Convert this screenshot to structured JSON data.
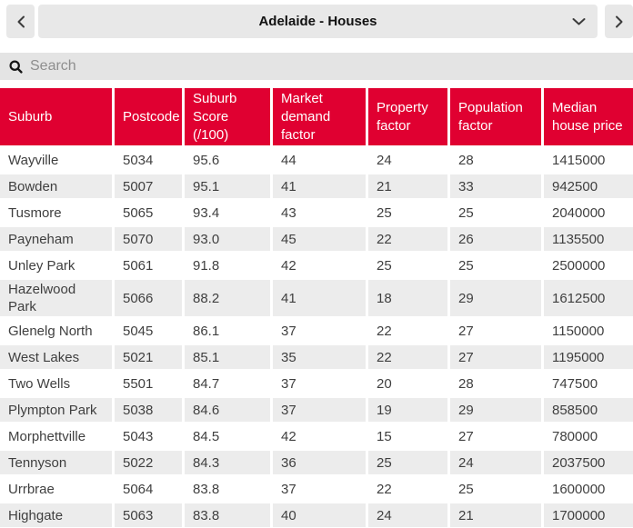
{
  "title_bar": {
    "selected_dataset": "Adelaide - Houses"
  },
  "search": {
    "placeholder": "Search"
  },
  "table": {
    "columns": [
      "Suburb",
      "Postcode",
      "Suburb Score (/100)",
      "Market demand factor",
      "Property factor",
      "Population factor",
      "Median house price"
    ],
    "rows": [
      [
        "Wayville",
        "5034",
        "95.6",
        "44",
        "24",
        "28",
        "1415000"
      ],
      [
        "Bowden",
        "5007",
        "95.1",
        "41",
        "21",
        "33",
        "942500"
      ],
      [
        "Tusmore",
        "5065",
        "93.4",
        "43",
        "25",
        "25",
        "2040000"
      ],
      [
        "Payneham",
        "5070",
        "93.0",
        "45",
        "22",
        "26",
        "1135500"
      ],
      [
        "Unley Park",
        "5061",
        "91.8",
        "42",
        "25",
        "25",
        "2500000"
      ],
      [
        "Hazelwood Park",
        "5066",
        "88.2",
        "41",
        "18",
        "29",
        "1612500"
      ],
      [
        "Glenelg North",
        "5045",
        "86.1",
        "37",
        "22",
        "27",
        "1150000"
      ],
      [
        "West Lakes",
        "5021",
        "85.1",
        "35",
        "22",
        "27",
        "1195000"
      ],
      [
        "Two Wells",
        "5501",
        "84.7",
        "37",
        "20",
        "28",
        "747500"
      ],
      [
        "Plympton Park",
        "5038",
        "84.6",
        "37",
        "19",
        "29",
        "858500"
      ],
      [
        "Morphettville",
        "5043",
        "84.5",
        "42",
        "15",
        "27",
        "780000"
      ],
      [
        "Tennyson",
        "5022",
        "84.3",
        "36",
        "25",
        "24",
        "2037500"
      ],
      [
        "Urrbrae",
        "5064",
        "83.8",
        "37",
        "22",
        "25",
        "1600000"
      ],
      [
        "Highgate",
        "5063",
        "83.8",
        "40",
        "24",
        "21",
        "1700000"
      ]
    ]
  },
  "icons": {
    "prev": "chevron-left",
    "next": "chevron-right",
    "dataset_dropdown": "chevron-down",
    "search": "magnifier"
  },
  "colors": {
    "header_red": "#e00031",
    "row_alt_gray": "#ececec",
    "control_gray": "#e8e8e8",
    "search_gray": "#e4e4e4",
    "cell_text": "#3f3f3f"
  }
}
